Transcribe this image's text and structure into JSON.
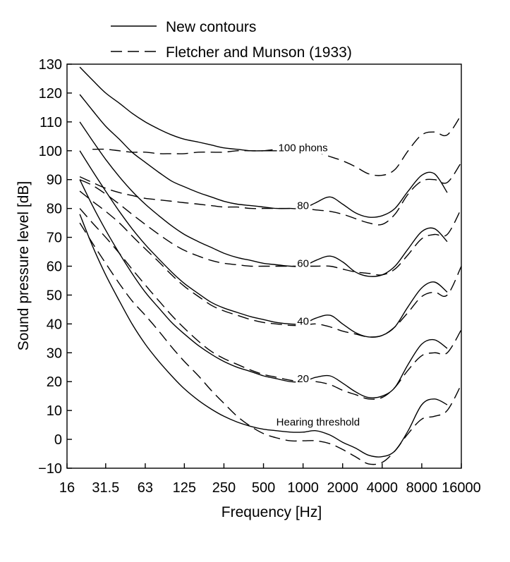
{
  "chart_data": {
    "type": "line",
    "title": "",
    "xlabel": "Frequency [Hz]",
    "ylabel": "Sound pressure level [dB]",
    "xscale": "log",
    "xlim": [
      16,
      16000
    ],
    "ylim": [
      -10,
      130
    ],
    "xticks": [
      16,
      31.5,
      63,
      125,
      250,
      500,
      1000,
      2000,
      4000,
      8000,
      16000
    ],
    "xtick_labels": [
      "16",
      "31.5",
      "63",
      "125",
      "250",
      "500",
      "1000",
      "2000",
      "4000",
      "8000",
      "16000"
    ],
    "yticks": [
      -10,
      0,
      10,
      20,
      30,
      40,
      50,
      60,
      70,
      80,
      90,
      100,
      110,
      120,
      130
    ],
    "ytick_labels": [
      "−10",
      "0",
      "10",
      "20",
      "30",
      "40",
      "50",
      "60",
      "70",
      "80",
      "90",
      "100",
      "110",
      "120",
      "130"
    ],
    "grid": false,
    "legend": {
      "placement": "top",
      "entries": [
        {
          "label": "New contours",
          "style": "solid"
        },
        {
          "label": "Fletcher and Munson (1933)",
          "style": "dashed"
        }
      ]
    },
    "annotations": [
      {
        "text": "100 phons",
        "x": 1000,
        "y": 101
      },
      {
        "text": "80",
        "x": 1000,
        "y": 81
      },
      {
        "text": "60",
        "x": 1000,
        "y": 61
      },
      {
        "text": "40",
        "x": 1000,
        "y": 41
      },
      {
        "text": "20",
        "x": 1000,
        "y": 21
      },
      {
        "text": "Hearing threshold",
        "x": 1300,
        "y": 6
      }
    ],
    "series": [
      {
        "group": "New contours",
        "style": "solid",
        "level": "Hearing threshold",
        "x": [
          20,
          25,
          31.5,
          40,
          50,
          63,
          80,
          100,
          125,
          160,
          200,
          250,
          315,
          400,
          500,
          630,
          800,
          1000,
          1250,
          1600,
          2000,
          2500,
          3150,
          4000,
          5000,
          6300,
          8000,
          10000,
          12500
        ],
        "y": [
          78,
          67,
          57,
          48,
          40,
          33,
          27,
          22,
          17.5,
          13.5,
          10.5,
          8,
          6,
          4.5,
          3.5,
          3,
          2.5,
          2.5,
          3,
          1.5,
          -1,
          -3,
          -5.5,
          -6,
          -4,
          3,
          12,
          14,
          12
        ]
      },
      {
        "group": "New contours",
        "style": "solid",
        "level": "20",
        "x": [
          20,
          25,
          31.5,
          40,
          50,
          63,
          80,
          100,
          125,
          160,
          200,
          250,
          315,
          400,
          500,
          630,
          800,
          1000,
          1250,
          1600,
          2000,
          2500,
          3150,
          4000,
          5000,
          6300,
          8000,
          10000,
          12500
        ],
        "y": [
          90,
          81,
          72.5,
          64.5,
          57.5,
          51,
          45.5,
          40.5,
          36.5,
          32.5,
          29.5,
          27,
          25,
          23.5,
          22,
          21,
          20,
          20,
          21.5,
          22,
          19.5,
          16.5,
          14.5,
          15,
          18,
          26,
          33,
          34.5,
          31.5
        ]
      },
      {
        "group": "New contours",
        "style": "solid",
        "level": "40",
        "x": [
          20,
          25,
          31.5,
          40,
          50,
          63,
          80,
          100,
          125,
          160,
          200,
          250,
          315,
          400,
          500,
          630,
          800,
          1000,
          1250,
          1600,
          2000,
          2500,
          3150,
          4000,
          5000,
          6300,
          8000,
          10000,
          12500
        ],
        "y": [
          100,
          93,
          86,
          79,
          73,
          67.5,
          62.5,
          58,
          54,
          50.5,
          47.5,
          45.5,
          44,
          42.5,
          41.5,
          40.5,
          40,
          40,
          42,
          43,
          40,
          37,
          35.5,
          36,
          39,
          46,
          52.5,
          54.5,
          51
        ]
      },
      {
        "group": "New contours",
        "style": "solid",
        "level": "60",
        "x": [
          20,
          25,
          31.5,
          40,
          50,
          63,
          80,
          100,
          125,
          160,
          200,
          250,
          315,
          400,
          500,
          630,
          800,
          1000,
          1250,
          1600,
          2000,
          2500,
          3150,
          4000,
          5000,
          6300,
          8000,
          10000,
          12500
        ],
        "y": [
          110,
          103.5,
          97,
          91,
          86,
          81.5,
          77.5,
          74,
          71,
          68.5,
          66.5,
          64.5,
          63,
          62,
          61,
          60.5,
          60,
          60,
          62,
          63.5,
          61.5,
          58,
          56.5,
          57,
          60,
          66,
          72,
          73,
          68.5
        ]
      },
      {
        "group": "New contours",
        "style": "solid",
        "level": "80",
        "x": [
          20,
          25,
          31.5,
          40,
          50,
          63,
          80,
          100,
          125,
          160,
          200,
          250,
          315,
          400,
          500,
          630,
          800,
          1000,
          1250,
          1600,
          2000,
          2500,
          3150,
          4000,
          5000,
          6300,
          8000,
          10000,
          12500
        ],
        "y": [
          119.5,
          114,
          108.5,
          104,
          99.5,
          96,
          92.5,
          89.5,
          87.5,
          85.5,
          84,
          82.5,
          81.5,
          81,
          80.5,
          80,
          80,
          80,
          82,
          84,
          81.5,
          78.5,
          77,
          77.5,
          80,
          86,
          91.5,
          92,
          85.5
        ]
      },
      {
        "group": "New contours",
        "style": "solid",
        "level": "100",
        "x": [
          20,
          25,
          31.5,
          40,
          50,
          63,
          80,
          100,
          125,
          160,
          200,
          250,
          315,
          400,
          500,
          630,
          800,
          1000
        ],
        "y": [
          129,
          124.5,
          120,
          116.5,
          113,
          110,
          107.5,
          105.5,
          104,
          103,
          102,
          101,
          100.5,
          100,
          100,
          100,
          100,
          100
        ]
      },
      {
        "group": "Fletcher and Munson (1933)",
        "style": "dashed",
        "level": "Hearing threshold",
        "x": [
          20,
          25,
          31.5,
          40,
          50,
          63,
          80,
          100,
          125,
          160,
          200,
          250,
          315,
          400,
          500,
          630,
          800,
          1000,
          1250,
          1600,
          2000,
          2500,
          3150,
          4000,
          5000,
          6300,
          8000,
          10000,
          12500,
          16000
        ],
        "y": [
          75,
          68,
          61,
          54,
          48,
          43,
          37.5,
          32,
          27,
          22,
          17,
          12.5,
          8,
          4.5,
          2,
          0.5,
          -0.5,
          -0.5,
          -0.5,
          -1.5,
          -3.5,
          -6,
          -8.5,
          -8,
          -4,
          2,
          7,
          8,
          10,
          19
        ]
      },
      {
        "group": "Fletcher and Munson (1933)",
        "style": "dashed",
        "level": "20",
        "x": [
          20,
          25,
          31.5,
          40,
          50,
          63,
          80,
          100,
          125,
          160,
          200,
          250,
          315,
          400,
          500,
          630,
          800,
          1000,
          1250,
          1600,
          2000,
          2500,
          3150,
          4000,
          5000,
          6300,
          8000,
          10000,
          12500,
          16000
        ],
        "y": [
          80,
          75,
          70,
          64.5,
          59,
          53.5,
          48,
          43,
          38.5,
          34,
          30.5,
          28,
          26,
          24,
          22.5,
          21.5,
          20.5,
          20,
          20,
          19,
          17,
          15.5,
          14,
          14.5,
          18,
          24,
          29,
          30,
          30,
          38
        ]
      },
      {
        "group": "Fletcher and Munson (1933)",
        "style": "dashed",
        "level": "40",
        "x": [
          20,
          25,
          31.5,
          40,
          50,
          63,
          80,
          100,
          125,
          160,
          200,
          250,
          315,
          400,
          500,
          630,
          800,
          1000,
          1250,
          1600,
          2000,
          2500,
          3150,
          4000,
          5000,
          6300,
          8000,
          10000,
          12500,
          16000
        ],
        "y": [
          86,
          82.5,
          79,
          75,
          70.5,
          66,
          61.5,
          57,
          53,
          49.5,
          46.5,
          44.5,
          43,
          41.5,
          40.5,
          40,
          39.5,
          39.5,
          40,
          39,
          37.5,
          36.5,
          35.5,
          36,
          39,
          44,
          49.5,
          51,
          50,
          60
        ]
      },
      {
        "group": "Fletcher and Munson (1933)",
        "style": "dashed",
        "level": "60",
        "x": [
          20,
          25,
          31.5,
          40,
          50,
          63,
          80,
          100,
          125,
          160,
          200,
          250,
          315,
          400,
          500,
          630,
          800,
          1000,
          1250,
          1600,
          2000,
          2500,
          3150,
          4000,
          5000,
          6300,
          8000,
          10000,
          12500,
          16000
        ],
        "y": [
          90,
          88,
          85,
          81.5,
          78,
          74.5,
          71,
          68,
          65.5,
          63.5,
          62,
          61,
          60.5,
          60,
          60,
          60,
          60,
          60,
          60,
          60,
          59,
          58,
          57.5,
          57,
          59,
          64,
          69.5,
          71,
          71,
          80
        ]
      },
      {
        "group": "Fletcher and Munson (1933)",
        "style": "dashed",
        "level": "80",
        "x": [
          20,
          25,
          31.5,
          40,
          50,
          63,
          80,
          100,
          125,
          160,
          200,
          250,
          315,
          400,
          500,
          630,
          800,
          1000,
          1250,
          1600,
          2000,
          2500,
          3150,
          4000,
          5000,
          6300,
          8000,
          10000,
          12500,
          16000
        ],
        "y": [
          91,
          89,
          87,
          85.5,
          84.5,
          83.5,
          83,
          82.5,
          82,
          81.5,
          81,
          80.5,
          80.5,
          80,
          80,
          80,
          80,
          80,
          79.5,
          79,
          78,
          76.5,
          75,
          74.5,
          78,
          85,
          89.5,
          90,
          89,
          96
        ]
      },
      {
        "group": "Fletcher and Munson (1933)",
        "style": "dashed",
        "level": "100",
        "x": [
          25,
          31.5,
          40,
          50,
          63,
          80,
          100,
          125,
          160,
          200,
          250,
          315,
          400,
          500,
          630,
          800,
          1000,
          1250,
          1600,
          2000,
          2500,
          3150,
          4000,
          5000,
          6300,
          8000,
          10000,
          12500,
          16000
        ],
        "y": [
          100.5,
          100.5,
          100,
          99.5,
          99.5,
          99,
          99,
          99,
          99.5,
          99.5,
          99.5,
          100,
          100,
          100,
          100.5,
          100.5,
          100.5,
          99.5,
          98,
          96.5,
          94.5,
          92,
          91.5,
          93.5,
          100,
          105.5,
          106.5,
          105.5,
          112.5
        ]
      }
    ]
  }
}
